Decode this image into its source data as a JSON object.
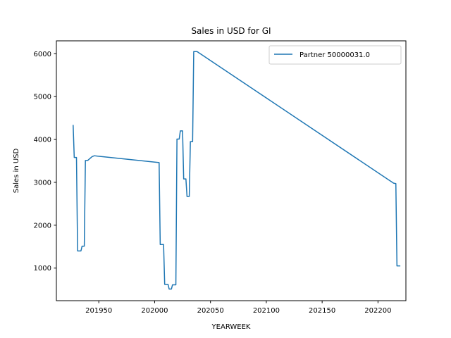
{
  "chart_data": {
    "type": "line",
    "title": "Sales in USD for GI",
    "xlabel": "YEARWEEK",
    "ylabel": "Sales in USD",
    "xlim": [
      201912,
      202225
    ],
    "ylim": [
      240,
      6300
    ],
    "xticks": [
      201950,
      202000,
      202050,
      202100,
      202150,
      202200
    ],
    "yticks": [
      1000,
      2000,
      3000,
      4000,
      5000,
      6000
    ],
    "grid": false,
    "legend_position": "top-right",
    "series": [
      {
        "name": "Partner 50000031.0",
        "color": "#1f77b4",
        "points": [
          [
            201927,
            4340
          ],
          [
            201928,
            3580
          ],
          [
            201930,
            3580
          ],
          [
            201931,
            1400
          ],
          [
            201934,
            1400
          ],
          [
            201935,
            1510
          ],
          [
            201937,
            1510
          ],
          [
            201938,
            3510
          ],
          [
            201940,
            3510
          ],
          [
            201944,
            3600
          ],
          [
            201946,
            3620
          ],
          [
            201949,
            3610
          ],
          [
            202004,
            3460
          ],
          [
            202005,
            1550
          ],
          [
            202008,
            1550
          ],
          [
            202009,
            620
          ],
          [
            202012,
            620
          ],
          [
            202013,
            510
          ],
          [
            202015,
            510
          ],
          [
            202016,
            610
          ],
          [
            202019,
            610
          ],
          [
            202020,
            4010
          ],
          [
            202022,
            4010
          ],
          [
            202023,
            4200
          ],
          [
            202025,
            4200
          ],
          [
            202026,
            3080
          ],
          [
            202028,
            3080
          ],
          [
            202029,
            2670
          ],
          [
            202031,
            2670
          ],
          [
            202032,
            3950
          ],
          [
            202034,
            3950
          ],
          [
            202035,
            6050
          ],
          [
            202038,
            6050
          ],
          [
            202214,
            2980
          ],
          [
            202216,
            2970
          ],
          [
            202217,
            1050
          ],
          [
            202220,
            1050
          ]
        ]
      }
    ]
  }
}
